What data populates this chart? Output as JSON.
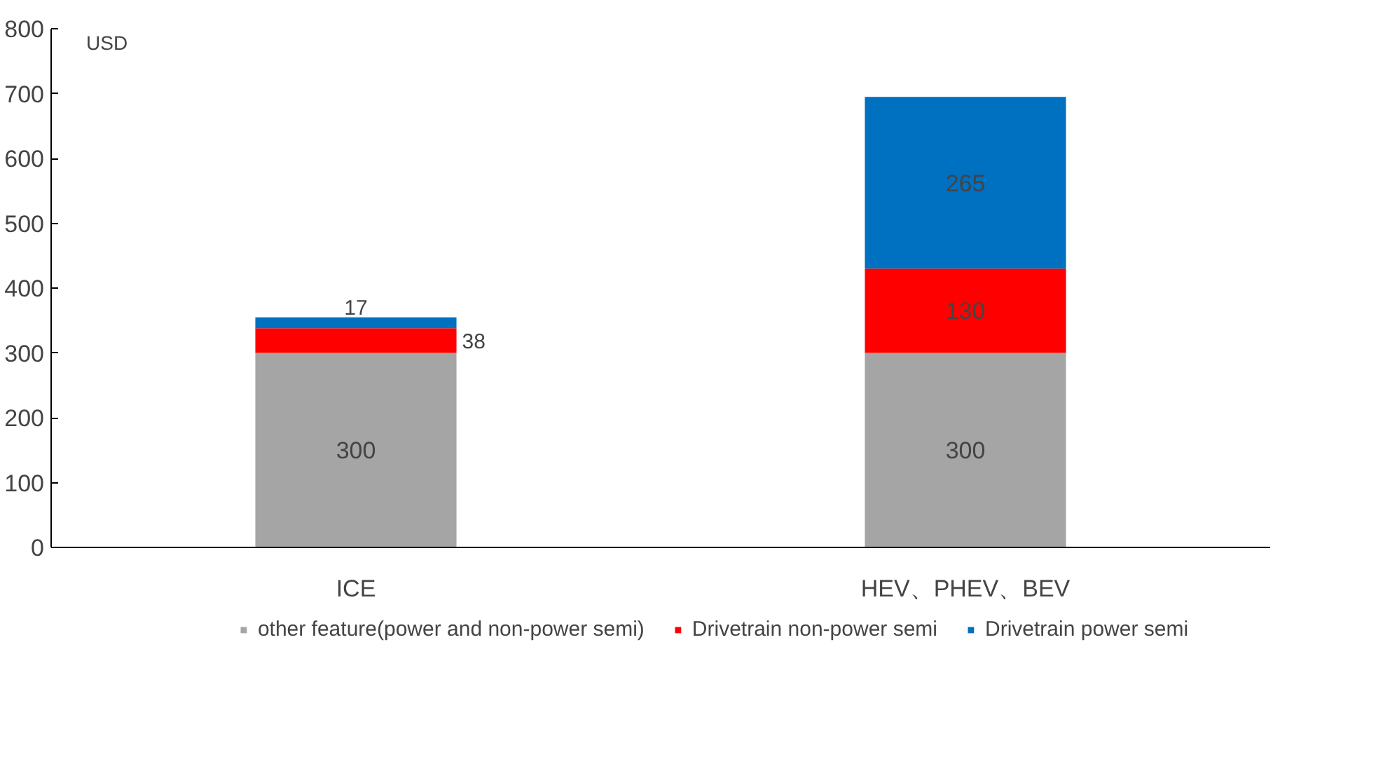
{
  "chart_data": {
    "type": "bar",
    "stacked": true,
    "ylabel": "USD",
    "categories": [
      "ICE",
      "HEV、PHEV、BEV"
    ],
    "series": [
      {
        "name": "other feature(power and non-power semi)",
        "color": "#a5a5a5",
        "values": [
          300,
          300
        ]
      },
      {
        "name": "Drivetrain non-power semi",
        "color": "#ff0000",
        "values": [
          38,
          130
        ]
      },
      {
        "name": "Drivetrain power semi",
        "color": "#0070c0",
        "values": [
          17,
          265
        ]
      }
    ],
    "ylim": [
      0,
      800
    ],
    "yticks": [
      0,
      100,
      200,
      300,
      400,
      500,
      600,
      700,
      800
    ],
    "grid": false,
    "legend": "bottom",
    "data_labels": true
  }
}
